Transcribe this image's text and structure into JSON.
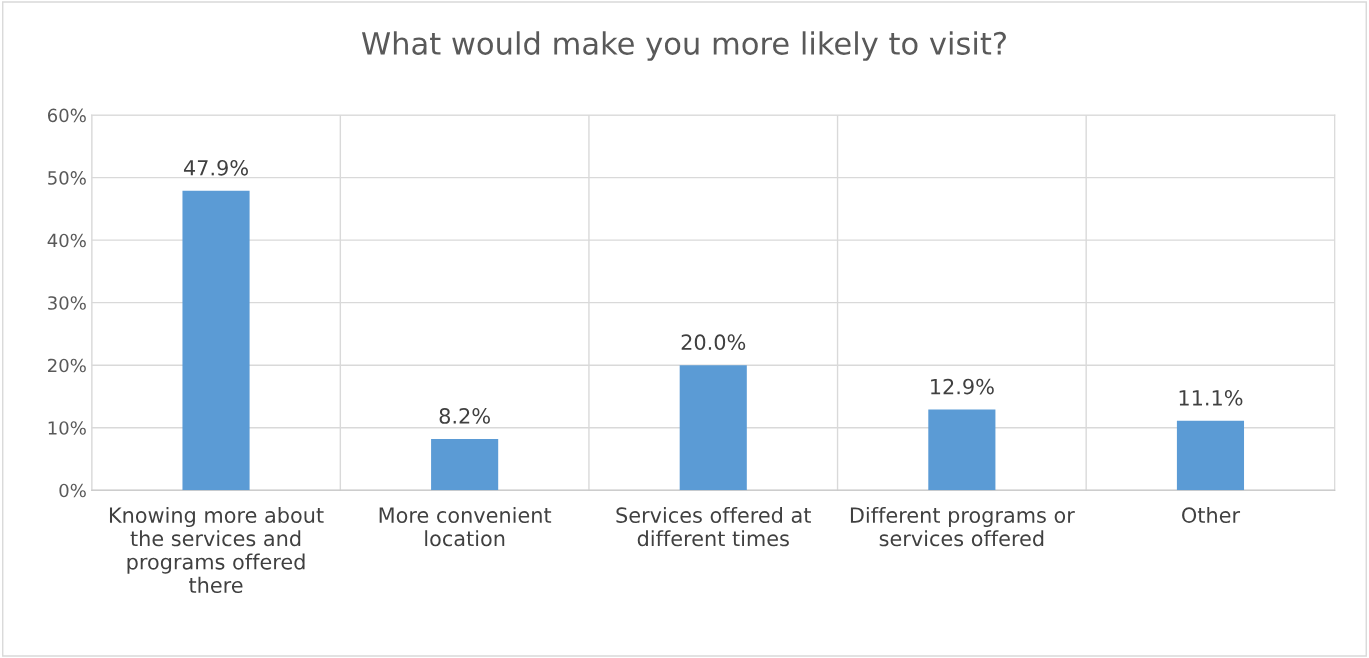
{
  "chart_data": {
    "type": "bar",
    "title": "What would make you more likely to visit?",
    "categories": [
      "Knowing more about the services and programs offered there",
      "More convenient location",
      "Services offered at different times",
      "Different programs or services offered",
      "Other"
    ],
    "values": [
      47.9,
      8.2,
      20.0,
      12.9,
      11.1
    ],
    "value_labels": [
      "47.9%",
      "8.2%",
      "20.0%",
      "12.9%",
      "11.1%"
    ],
    "color": "#5b9bd5",
    "ylim": [
      0,
      60
    ],
    "yticks": [
      {
        "value": 0,
        "label": "0%"
      },
      {
        "value": 10,
        "label": "10%"
      },
      {
        "value": 20,
        "label": "20%"
      },
      {
        "value": 30,
        "label": "30%"
      },
      {
        "value": 40,
        "label": "40%"
      },
      {
        "value": 50,
        "label": "50%"
      },
      {
        "value": 60,
        "label": "60%"
      }
    ],
    "grid": true
  }
}
